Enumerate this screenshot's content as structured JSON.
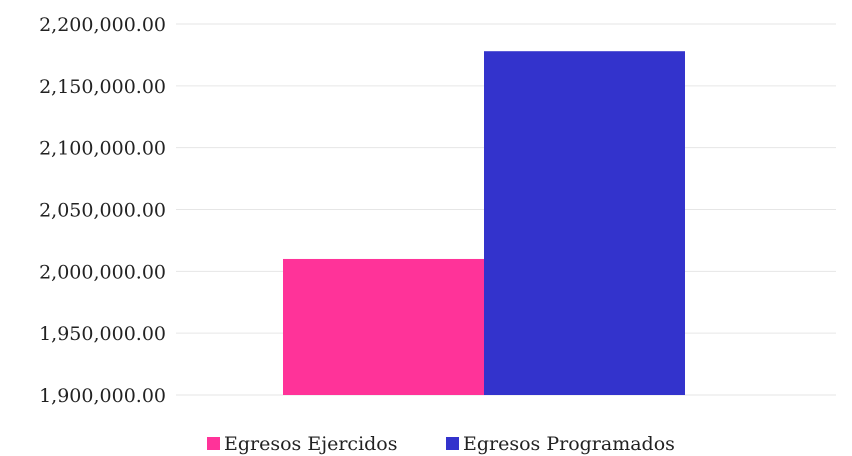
{
  "chart_data": {
    "type": "bar",
    "categories": [
      ""
    ],
    "series": [
      {
        "name": "Egresos Ejercidos",
        "values": [
          2010000
        ],
        "color": "#ff3399"
      },
      {
        "name": "Egresos Programados",
        "values": [
          2178000
        ],
        "color": "#3333cc"
      }
    ],
    "title": "",
    "xlabel": "",
    "ylabel": "",
    "ylim": [
      1900000,
      2200000
    ],
    "yticks": [
      {
        "value": 1900000,
        "label": "1,900,000.00"
      },
      {
        "value": 1950000,
        "label": "1,950,000.00"
      },
      {
        "value": 2000000,
        "label": "2,000,000.00"
      },
      {
        "value": 2050000,
        "label": "2,050,000.00"
      },
      {
        "value": 2100000,
        "label": "2,100,000.00"
      },
      {
        "value": 2150000,
        "label": "2,150,000.00"
      },
      {
        "value": 2200000,
        "label": "2,200,000.00"
      }
    ],
    "grid": true,
    "legend_position": "bottom"
  }
}
